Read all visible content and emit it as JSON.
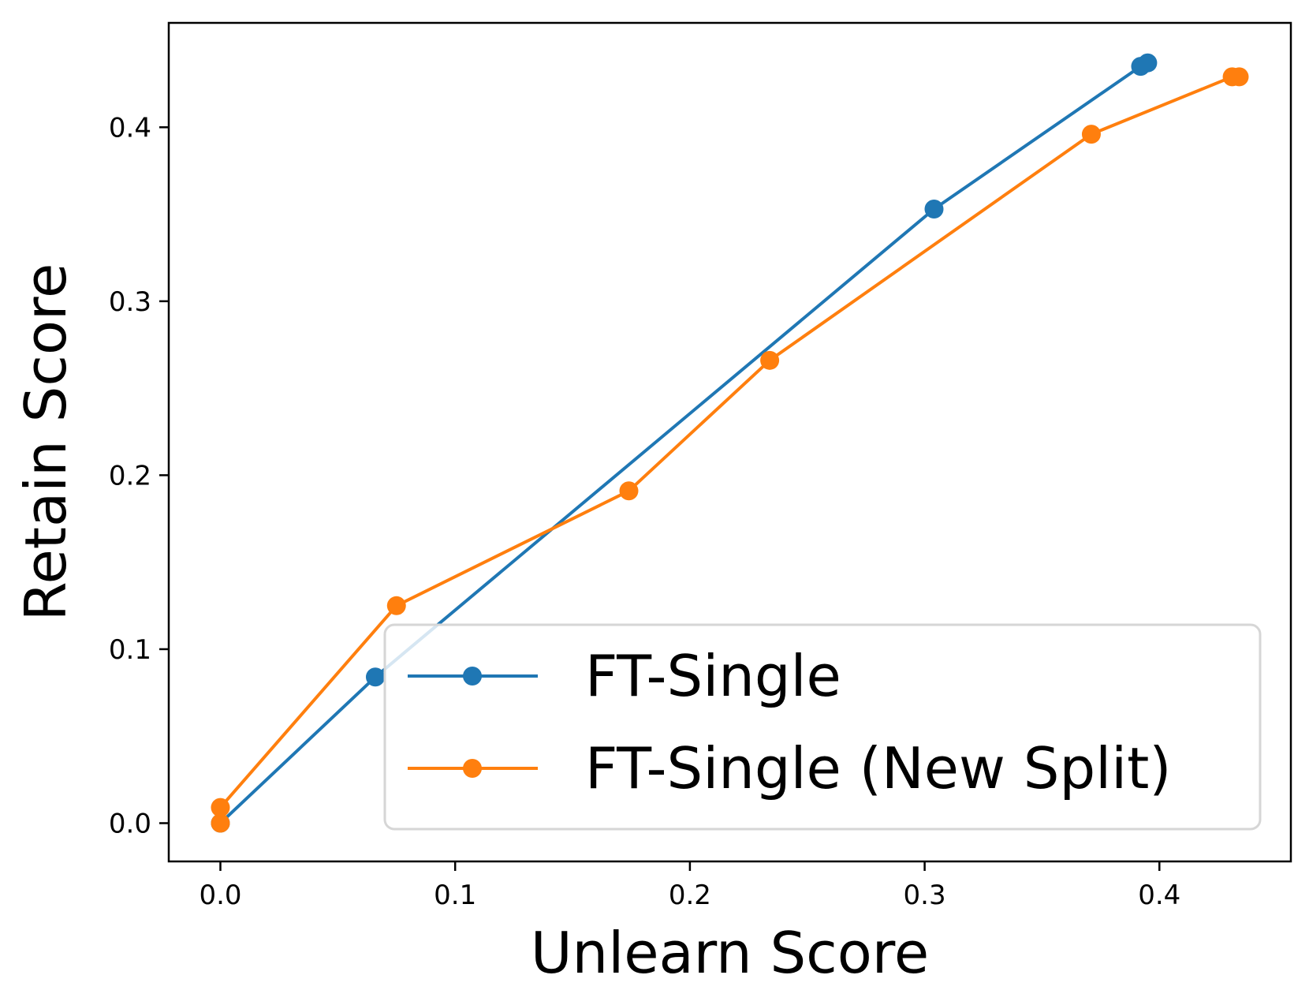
{
  "chart_data": {
    "type": "line",
    "title": "",
    "xlabel": "Unlearn Score",
    "ylabel": "Retain Score",
    "xlim": [
      -0.022,
      0.456
    ],
    "ylim": [
      -0.022,
      0.46
    ],
    "xticks": [
      0.0,
      0.1,
      0.2,
      0.3,
      0.4
    ],
    "xtick_labels": [
      "0.0",
      "0.1",
      "0.2",
      "0.3",
      "0.4"
    ],
    "yticks": [
      0.0,
      0.1,
      0.2,
      0.3,
      0.4
    ],
    "ytick_labels": [
      "0.0",
      "0.1",
      "0.2",
      "0.3",
      "0.4"
    ],
    "grid": false,
    "legend_position": "lower-right",
    "series": [
      {
        "name": "FT-Single",
        "color": "#1f77b4",
        "x": [
          0.0,
          0.066,
          0.304,
          0.392,
          0.395
        ],
        "y": [
          0.0,
          0.084,
          0.353,
          0.435,
          0.437
        ]
      },
      {
        "name": "FT-Single (New Split)",
        "color": "#ff7f0e",
        "x": [
          0.0,
          0.0,
          0.075,
          0.174,
          0.234,
          0.371,
          0.431,
          0.434
        ],
        "y": [
          0.0,
          0.009,
          0.125,
          0.191,
          0.266,
          0.396,
          0.429,
          0.429
        ]
      }
    ]
  }
}
